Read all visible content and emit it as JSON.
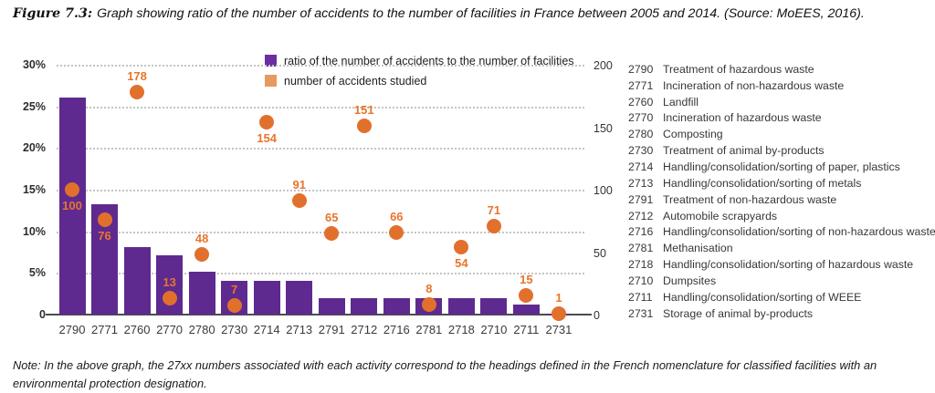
{
  "title": {
    "label": "Figure 7.3:",
    "text": "Graph showing ratio of the number of accidents to the number of facilities in France between 2005 and 2014. (Source: MoEES, 2016)."
  },
  "note": "Note: In the above graph, the 27xx numbers associated with each activity correspond to the headings defined in the French nomenclature for classified facilities with an environmental protection designation.",
  "chart_data": {
    "type": "bar",
    "categories": [
      "2790",
      "2771",
      "2760",
      "2770",
      "2780",
      "2730",
      "2714",
      "2713",
      "2791",
      "2712",
      "2716",
      "2781",
      "2718",
      "2710",
      "2711",
      "2731"
    ],
    "series": [
      {
        "name": "ratio of the number of accidents to the number of facilities",
        "type": "bar",
        "axis": "left",
        "unit": "percent",
        "values": [
          26.1,
          13.2,
          8.1,
          7.1,
          5.1,
          4.1,
          4.1,
          4.1,
          2.0,
          2.0,
          2.0,
          2.0,
          2.0,
          2.0,
          1.2,
          0.1
        ]
      },
      {
        "name": "number of accidents studied",
        "type": "scatter",
        "axis": "right",
        "values": [
          100,
          76,
          178,
          13,
          48,
          7,
          154,
          91,
          65,
          151,
          66,
          8,
          54,
          71,
          15,
          1
        ],
        "label_position": [
          "below",
          "below",
          "above",
          "above",
          "above",
          "above",
          "below",
          "above",
          "above",
          "above",
          "above",
          "above",
          "below",
          "above",
          "above",
          "above"
        ]
      }
    ],
    "left_axis": {
      "ticks": [
        "30%",
        "25%",
        "20%",
        "15%",
        "10%",
        "5%",
        "0"
      ],
      "min": 0,
      "max": 30
    },
    "right_axis": {
      "ticks": [
        "200",
        "150",
        "100",
        "50",
        "0"
      ],
      "min": 0,
      "max": 200
    },
    "grid": "horizontal dotted every 5% of left axis",
    "legend_position": "top-center",
    "colors": {
      "bar": "#5E2A8F",
      "legend_bar": "#6B2FA3",
      "dot": "#E2702D",
      "legend_dot": "#E79A60",
      "dot_label": "#E8752B",
      "grid": "#C4C4C4",
      "axis": "#4D4D4D",
      "text": "#3A3A3A"
    }
  },
  "facilities": [
    {
      "code": "2790",
      "label": "Treatment of hazardous waste"
    },
    {
      "code": "2771",
      "label": "Incineration of non-hazardous waste"
    },
    {
      "code": "2760",
      "label": "Landfill"
    },
    {
      "code": "2770",
      "label": "Incineration of hazardous waste"
    },
    {
      "code": "2780",
      "label": "Composting"
    },
    {
      "code": "2730",
      "label": "Treatment of animal by-products"
    },
    {
      "code": "2714",
      "label": "Handling/consolidation/sorting of paper, plastics"
    },
    {
      "code": "2713",
      "label": "Handling/consolidation/sorting of metals"
    },
    {
      "code": "2791",
      "label": "Treatment of non-hazardous waste"
    },
    {
      "code": "2712",
      "label": "Automobile scrapyards"
    },
    {
      "code": "2716",
      "label": "Handling/consolidation/sorting of non-hazardous waste"
    },
    {
      "code": "2781",
      "label": "Methanisation"
    },
    {
      "code": "2718",
      "label": "Handling/consolidation/sorting of hazardous waste"
    },
    {
      "code": "2710",
      "label": "Dumpsites"
    },
    {
      "code": "2711",
      "label": "Handling/consolidation/sorting of WEEE"
    },
    {
      "code": "2731",
      "label": "Storage of animal by-products"
    }
  ]
}
